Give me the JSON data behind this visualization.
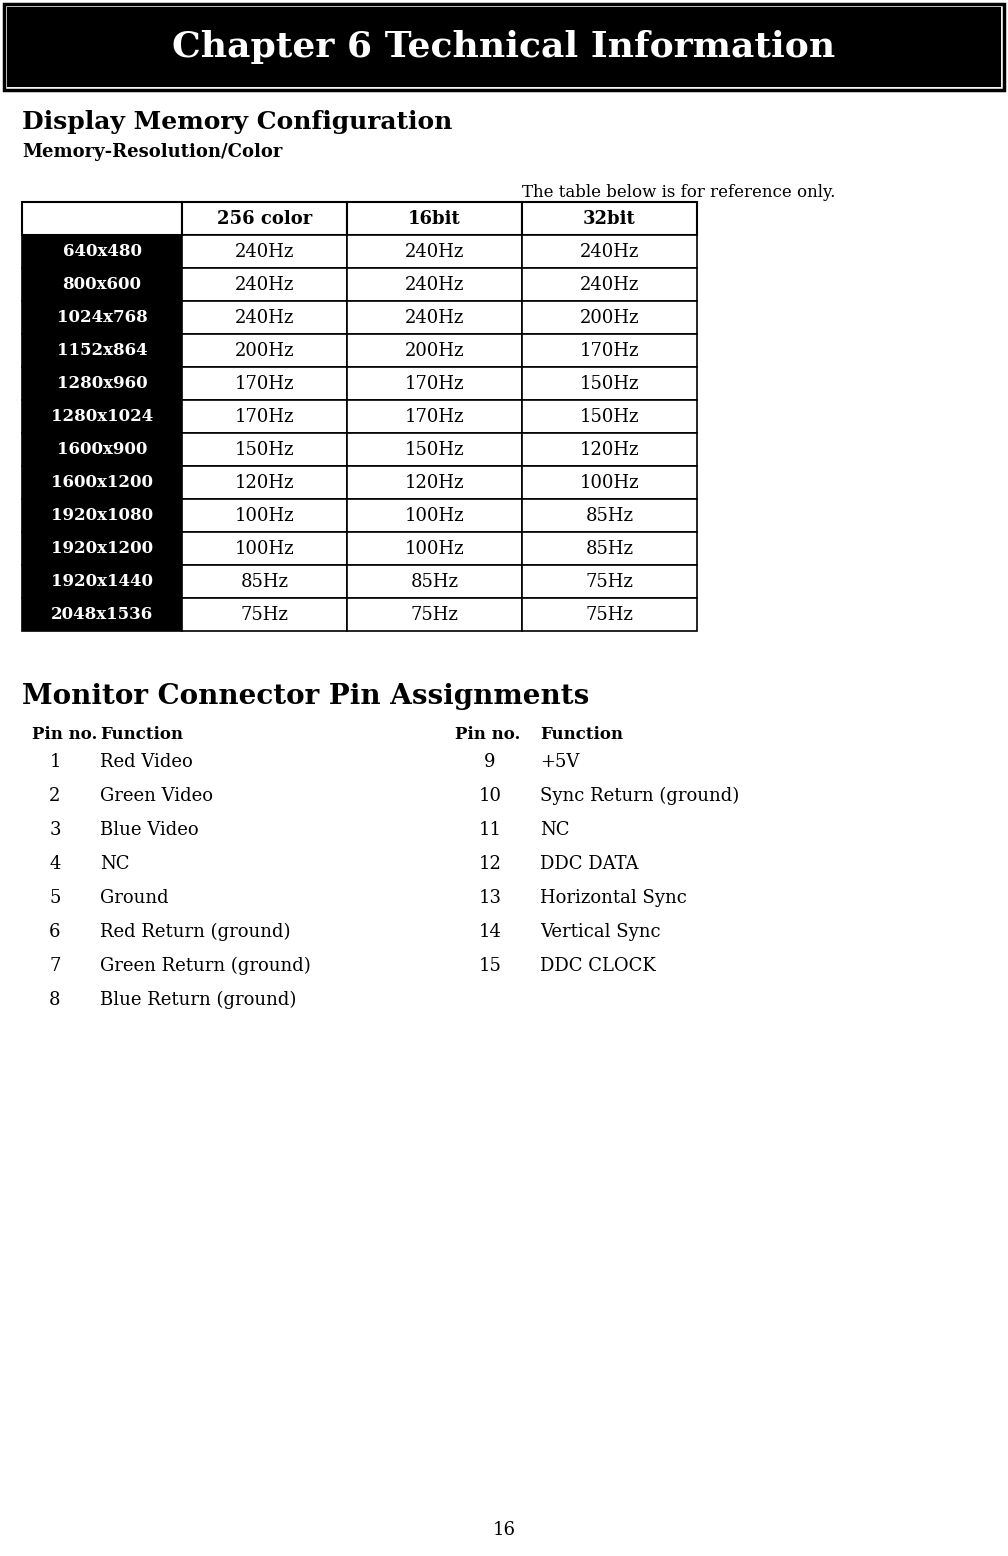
{
  "chapter_title": "Chapter 6 Technical Information",
  "section1_title": "Display Memory Configuration",
  "section1_subtitle": "Memory-Resolution/Color",
  "table_note": "The table below is for reference only.",
  "table_headers": [
    "",
    "256 color",
    "16bit",
    "32bit"
  ],
  "table_rows": [
    [
      "640x480",
      "240Hz",
      "240Hz",
      "240Hz"
    ],
    [
      "800x600",
      "240Hz",
      "240Hz",
      "240Hz"
    ],
    [
      "1024x768",
      "240Hz",
      "240Hz",
      "200Hz"
    ],
    [
      "1152x864",
      "200Hz",
      "200Hz",
      "170Hz"
    ],
    [
      "1280x960",
      "170Hz",
      "170Hz",
      "150Hz"
    ],
    [
      "1280x1024",
      "170Hz",
      "170Hz",
      "150Hz"
    ],
    [
      "1600x900",
      "150Hz",
      "150Hz",
      "120Hz"
    ],
    [
      "1600x1200",
      "120Hz",
      "120Hz",
      "100Hz"
    ],
    [
      "1920x1080",
      "100Hz",
      "100Hz",
      "85Hz"
    ],
    [
      "1920x1200",
      "100Hz",
      "100Hz",
      "85Hz"
    ],
    [
      "1920x1440",
      "85Hz",
      "85Hz",
      "75Hz"
    ],
    [
      "2048x1536",
      "75Hz",
      "75Hz",
      "75Hz"
    ]
  ],
  "section2_title": "Monitor Connector Pin Assignments",
  "pin_header_left": [
    "Pin no.",
    "Function"
  ],
  "pin_header_right": [
    "Pin no.",
    "Function"
  ],
  "pin_rows_left": [
    [
      "1",
      "Red Video"
    ],
    [
      "2",
      "Green Video"
    ],
    [
      "3",
      "Blue Video"
    ],
    [
      "4",
      "NC"
    ],
    [
      "5",
      "Ground"
    ],
    [
      "6",
      "Red Return (ground)"
    ],
    [
      "7",
      "Green Return (ground)"
    ],
    [
      "8",
      "Blue Return (ground)"
    ]
  ],
  "pin_rows_right": [
    [
      "9",
      "+5V"
    ],
    [
      "10",
      "Sync Return (ground)"
    ],
    [
      "11",
      "NC"
    ],
    [
      "12",
      "DDC DATA"
    ],
    [
      "13",
      "Horizontal Sync"
    ],
    [
      "14",
      "Vertical Sync"
    ],
    [
      "15",
      "DDC CLOCK"
    ]
  ],
  "page_number": "16",
  "bg_color": "#ffffff",
  "header_bg": "#000000",
  "header_text_color": "#ffffff",
  "row_bg_black": "#000000",
  "row_text_white": "#ffffff",
  "row_bg_white": "#ffffff",
  "row_text_black": "#000000",
  "border_color": "#000000",
  "fig_width": 10.08,
  "fig_height": 15.56,
  "dpi": 100
}
